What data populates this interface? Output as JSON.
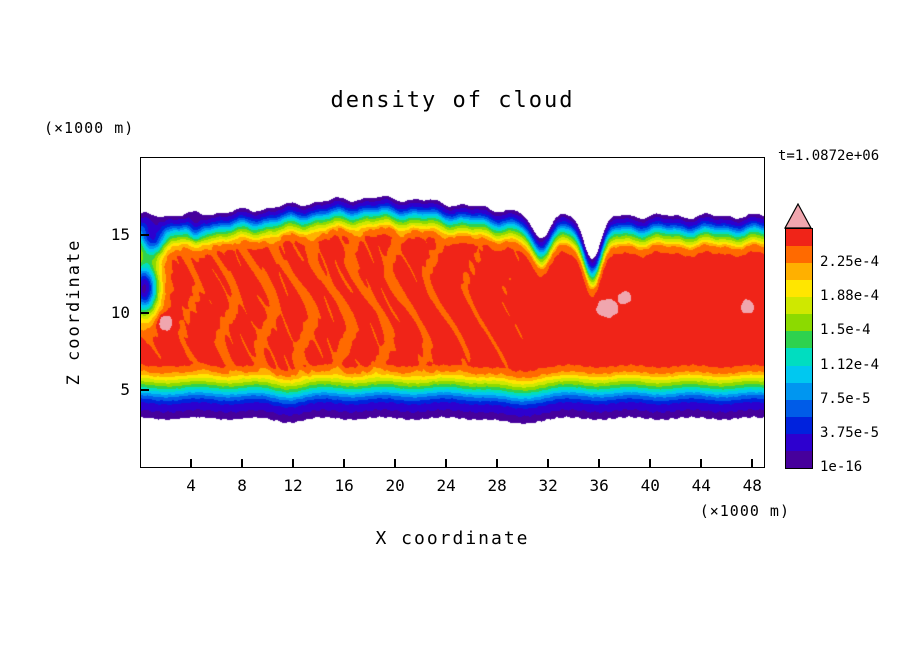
{
  "chart_data": {
    "type": "heatmap",
    "title": "density of cloud",
    "xlabel": "X coordinate",
    "ylabel": "Z coordinate",
    "x_unit_label": "(×1000 m)",
    "y_unit_label": "(×1000 m)",
    "time_annotation": "t=1.0872e+06",
    "xlim": [
      0,
      49
    ],
    "ylim": [
      0,
      20
    ],
    "x_ticks": [
      4,
      8,
      12,
      16,
      20,
      24,
      28,
      32,
      36,
      40,
      44,
      48
    ],
    "y_ticks": [
      5,
      10,
      15
    ],
    "grid": false,
    "colorbar": {
      "levels_bottom_to_top": [
        "1e-16",
        "3.75e-5",
        "7.5e-5",
        "1.12e-4",
        "1.5e-4",
        "1.88e-4",
        "2.25e-4"
      ],
      "band_step": 1.875e-05,
      "n_bands": 14,
      "colors_bottom_to_top": [
        "#46009c",
        "#2d00cf",
        "#0022dd",
        "#005ce8",
        "#0096f0",
        "#00c8f0",
        "#00ddc0",
        "#2ed24e",
        "#8cda00",
        "#cfe800",
        "#ffe600",
        "#ffb000",
        "#ff6a00",
        "#f02418"
      ],
      "over_color": "#f0a6ae",
      "under_color": "#ffffff"
    },
    "field_model": {
      "description": "Horizontal cloud layer between z~3.2 and z~16.3 (x1000 m); red core density ~2.4e-4 with rainbow-banded upper/lower edges, domed top near x~18, dips near x~31 and x~35, low-density notches at the left wall, wavy striations in the core, and a few over-range (pink) hot spots.",
      "plateau_u": 13.3,
      "top_profile": [
        [
          0,
          0
        ],
        [
          0.5,
          2
        ],
        [
          0.8,
          4
        ],
        [
          1.05,
          6
        ],
        [
          1.35,
          8
        ],
        [
          1.7,
          10
        ],
        [
          2.0,
          12
        ],
        [
          2.6,
          13.3
        ]
      ],
      "bottom_profile": [
        [
          0,
          0
        ],
        [
          1.0,
          2
        ],
        [
          1.45,
          4
        ],
        [
          1.8,
          6
        ],
        [
          2.15,
          8
        ],
        [
          2.55,
          10
        ],
        [
          2.95,
          12
        ],
        [
          3.5,
          13.3
        ]
      ],
      "top_edge": {
        "base": 16.25,
        "dome": {
          "amp": 1.15,
          "x0": 18.5,
          "sx": 9.5
        },
        "dips": [
          {
            "amp": 1.5,
            "x0": 31.3,
            "sx": 1.0
          },
          {
            "amp": 2.6,
            "x0": 35.4,
            "sx": 1.0
          }
        ],
        "wiggle": [
          [
            0.12,
            1.7,
            1.0
          ],
          [
            0.08,
            3.3,
            0.4
          ]
        ]
      },
      "bottom_edge": {
        "base": 3.2,
        "dips": [
          {
            "amp": 0.35,
            "x0": 29.5,
            "sx": 1.8
          },
          {
            "amp": 0.2,
            "x0": 11.5,
            "sx": 1.6
          }
        ],
        "wiggle": [
          [
            0.08,
            1.3,
            2.0
          ]
        ]
      },
      "depressions": [
        {
          "x0": 0.3,
          "z0": 11.6,
          "sx": 1.1,
          "sz": 1.7,
          "amp": 0.95
        },
        {
          "x0": 0.9,
          "z0": 14.9,
          "sx": 1.05,
          "sz": 1.35,
          "amp": 0.8
        },
        {
          "x0": 4.3,
          "z0": 16.0,
          "sx": 0.6,
          "sz": 1.4,
          "amp": 0.75
        }
      ],
      "hot_spots": [
        {
          "x0": 1.9,
          "z0": 9.4,
          "sx": 0.55,
          "sz": 0.5,
          "amp": 2.6
        },
        {
          "x0": 36.6,
          "z0": 10.3,
          "sx": 0.8,
          "sz": 0.55,
          "amp": 2.2
        },
        {
          "x0": 38.0,
          "z0": 11.0,
          "sx": 0.5,
          "sz": 0.4,
          "amp": 1.8
        },
        {
          "x0": 47.6,
          "z0": 10.4,
          "sx": 0.5,
          "sz": 0.45,
          "amp": 2.0
        }
      ],
      "ripple": {
        "amp": 0.9,
        "env_x0": 14,
        "env_sx": 13,
        "freq1": 2.2
      }
    }
  }
}
